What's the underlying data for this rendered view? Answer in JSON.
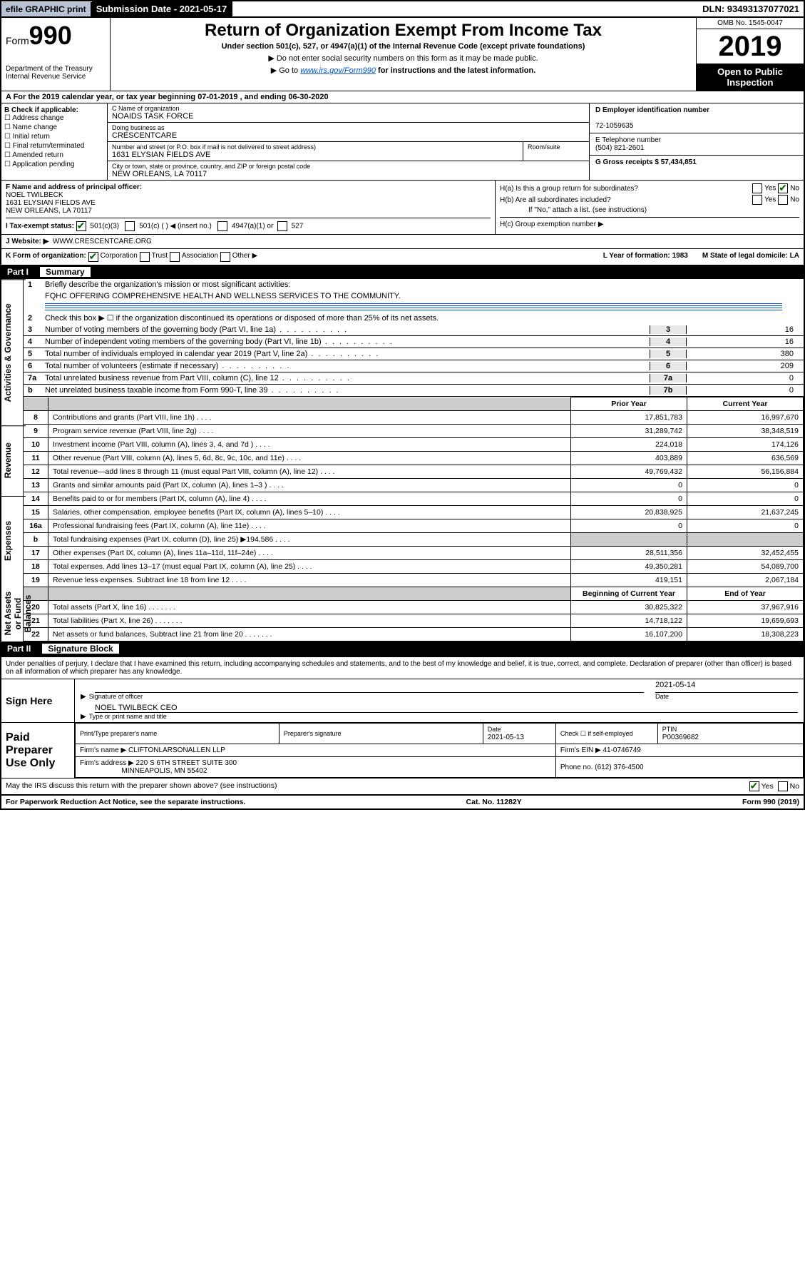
{
  "top": {
    "efile": "efile GRAPHIC print",
    "submission": "Submission Date - 2021-05-17",
    "dln": "DLN: 93493137077021"
  },
  "header": {
    "form_prefix": "Form",
    "form_number": "990",
    "dept": "Department of the Treasury",
    "irs": "Internal Revenue Service",
    "title": "Return of Organization Exempt From Income Tax",
    "subtitle": "Under section 501(c), 527, or 4947(a)(1) of the Internal Revenue Code (except private foundations)",
    "inst1": "▶ Do not enter social security numbers on this form as it may be made public.",
    "inst2_pre": "▶ Go to ",
    "inst2_link": "www.irs.gov/Form990",
    "inst2_post": " for instructions and the latest information.",
    "omb": "OMB No. 1545-0047",
    "year": "2019",
    "open": "Open to Public Inspection"
  },
  "a_line": "A For the 2019 calendar year, or tax year beginning 07-01-2019    , and ending 06-30-2020",
  "b": {
    "label": "B Check if applicable:",
    "items": [
      "Address change",
      "Name change",
      "Initial return",
      "Final return/terminated",
      "Amended return",
      "Application pending"
    ]
  },
  "c": {
    "name_label": "C Name of organization",
    "name": "NOAIDS TASK FORCE",
    "dba_label": "Doing business as",
    "dba": "CRESCENTCARE",
    "addr_label": "Number and street (or P.O. box if mail is not delivered to street address)",
    "addr": "1631 ELYSIAN FIELDS AVE",
    "room": "Room/suite",
    "city_label": "City or town, state or province, country, and ZIP or foreign postal code",
    "city": "NEW ORLEANS, LA  70117"
  },
  "d": {
    "label": "D Employer identification number",
    "val": "72-1059635"
  },
  "e": {
    "label": "E Telephone number",
    "val": "(504) 821-2601"
  },
  "g": {
    "label": "G Gross receipts $ 57,434,851"
  },
  "f": {
    "label": "F  Name and address of principal officer:",
    "name": "NOEL TWILBECK",
    "addr1": "1631 ELYSIAN FIELDS AVE",
    "addr2": "NEW ORLEANS, LA  70117"
  },
  "h": {
    "a": "H(a)  Is this a group return for subordinates?",
    "b": "H(b)  Are all subordinates included?",
    "note": "If \"No,\" attach a list. (see instructions)",
    "c": "H(c)  Group exemption number ▶"
  },
  "i": {
    "label": "I   Tax-exempt status:",
    "opt1": "501(c)(3)",
    "opt2": "501(c) (  ) ◀ (insert no.)",
    "opt3": "4947(a)(1) or",
    "opt4": "527"
  },
  "j": {
    "label": "J   Website: ▶",
    "val": "WWW.CRESCENTCARE.ORG"
  },
  "k": {
    "label": "K Form of organization:",
    "corp": "Corporation",
    "trust": "Trust",
    "assoc": "Association",
    "other": "Other ▶",
    "l": "L Year of formation: 1983",
    "m": "M State of legal domicile: LA"
  },
  "part1": {
    "label": "Part I",
    "title": "Summary"
  },
  "summary": {
    "l1": "Briefly describe the organization's mission or most significant activities:",
    "l1val": "FQHC OFFERING COMPREHENSIVE HEALTH AND WELLNESS SERVICES TO THE COMMUNITY.",
    "l2": "Check this box ▶ ☐  if the organization discontinued its operations or disposed of more than 25% of its net assets.",
    "l3": "Number of voting members of the governing body (Part VI, line 1a)",
    "l4": "Number of independent voting members of the governing body (Part VI, line 1b)",
    "l5": "Total number of individuals employed in calendar year 2019 (Part V, line 2a)",
    "l6": "Total number of volunteers (estimate if necessary)",
    "l7a": "Total unrelated business revenue from Part VIII, column (C), line 12",
    "l7b": "Net unrelated business taxable income from Form 990-T, line 39",
    "v3": "16",
    "v4": "16",
    "v5": "380",
    "v6": "209",
    "v7a": "0",
    "v7b": "0"
  },
  "fin": {
    "h_prior": "Prior Year",
    "h_current": "Current Year",
    "h_begin": "Beginning of Current Year",
    "h_end": "End of Year",
    "rows": [
      {
        "n": "8",
        "d": "Contributions and grants (Part VIII, line 1h)",
        "p": "17,851,783",
        "c": "16,997,670"
      },
      {
        "n": "9",
        "d": "Program service revenue (Part VIII, line 2g)",
        "p": "31,289,742",
        "c": "38,348,519"
      },
      {
        "n": "10",
        "d": "Investment income (Part VIII, column (A), lines 3, 4, and 7d )",
        "p": "224,018",
        "c": "174,126"
      },
      {
        "n": "11",
        "d": "Other revenue (Part VIII, column (A), lines 5, 6d, 8c, 9c, 10c, and 11e)",
        "p": "403,889",
        "c": "636,569"
      },
      {
        "n": "12",
        "d": "Total revenue—add lines 8 through 11 (must equal Part VIII, column (A), line 12)",
        "p": "49,769,432",
        "c": "56,156,884"
      },
      {
        "n": "13",
        "d": "Grants and similar amounts paid (Part IX, column (A), lines 1–3 )",
        "p": "0",
        "c": "0"
      },
      {
        "n": "14",
        "d": "Benefits paid to or for members (Part IX, column (A), line 4)",
        "p": "0",
        "c": "0"
      },
      {
        "n": "15",
        "d": "Salaries, other compensation, employee benefits (Part IX, column (A), lines 5–10)",
        "p": "20,838,925",
        "c": "21,637,245"
      },
      {
        "n": "16a",
        "d": "Professional fundraising fees (Part IX, column (A), line 11e)",
        "p": "0",
        "c": "0"
      },
      {
        "n": "b",
        "d": "Total fundraising expenses (Part IX, column (D), line 25) ▶194,586",
        "p": "",
        "c": "",
        "gray": true
      },
      {
        "n": "17",
        "d": "Other expenses (Part IX, column (A), lines 11a–11d, 11f–24e)",
        "p": "28,511,356",
        "c": "32,452,455"
      },
      {
        "n": "18",
        "d": "Total expenses. Add lines 13–17 (must equal Part IX, column (A), line 25)",
        "p": "49,350,281",
        "c": "54,089,700"
      },
      {
        "n": "19",
        "d": "Revenue less expenses. Subtract line 18 from line 12",
        "p": "419,151",
        "c": "2,067,184"
      }
    ],
    "net_rows": [
      {
        "n": "20",
        "d": "Total assets (Part X, line 16)",
        "p": "30,825,322",
        "c": "37,967,916"
      },
      {
        "n": "21",
        "d": "Total liabilities (Part X, line 26)",
        "p": "14,718,122",
        "c": "19,659,693"
      },
      {
        "n": "22",
        "d": "Net assets or fund balances. Subtract line 21 from line 20",
        "p": "16,107,200",
        "c": "18,308,223"
      }
    ]
  },
  "vtabs": {
    "gov": "Activities & Governance",
    "rev": "Revenue",
    "exp": "Expenses",
    "net": "Net Assets or Fund Balances"
  },
  "part2": {
    "label": "Part II",
    "title": "Signature Block"
  },
  "sig": {
    "decl": "Under penalties of perjury, I declare that I have examined this return, including accompanying schedules and statements, and to the best of my knowledge and belief, it is true, correct, and complete. Declaration of preparer (other than officer) is based on all information of which preparer has any knowledge.",
    "sign_here": "Sign Here",
    "sig_officer": "Signature of officer",
    "date": "2021-05-14",
    "date_label": "Date",
    "name": "NOEL TWILBECK CEO",
    "name_label": "Type or print name and title",
    "paid": "Paid Preparer Use Only",
    "prep_name_label": "Print/Type preparer's name",
    "prep_sig_label": "Preparer's signature",
    "prep_date": "2021-05-13",
    "check_label": "Check ☐ if self-employed",
    "ptin_label": "PTIN",
    "ptin": "P00369682",
    "firm_name_label": "Firm's name    ▶",
    "firm_name": "CLIFTONLARSONALLEN LLP",
    "firm_ein_label": "Firm's EIN ▶",
    "firm_ein": "41-0746749",
    "firm_addr_label": "Firm's address ▶",
    "firm_addr": "220 S 6TH STREET SUITE 300",
    "firm_city": "MINNEAPOLIS, MN  55402",
    "phone_label": "Phone no.",
    "phone": "(612) 376-4500"
  },
  "discuss": "May the IRS discuss this return with the preparer shown above? (see instructions)",
  "footer": {
    "left": "For Paperwork Reduction Act Notice, see the separate instructions.",
    "mid": "Cat. No. 11282Y",
    "right": "Form 990 (2019)"
  }
}
